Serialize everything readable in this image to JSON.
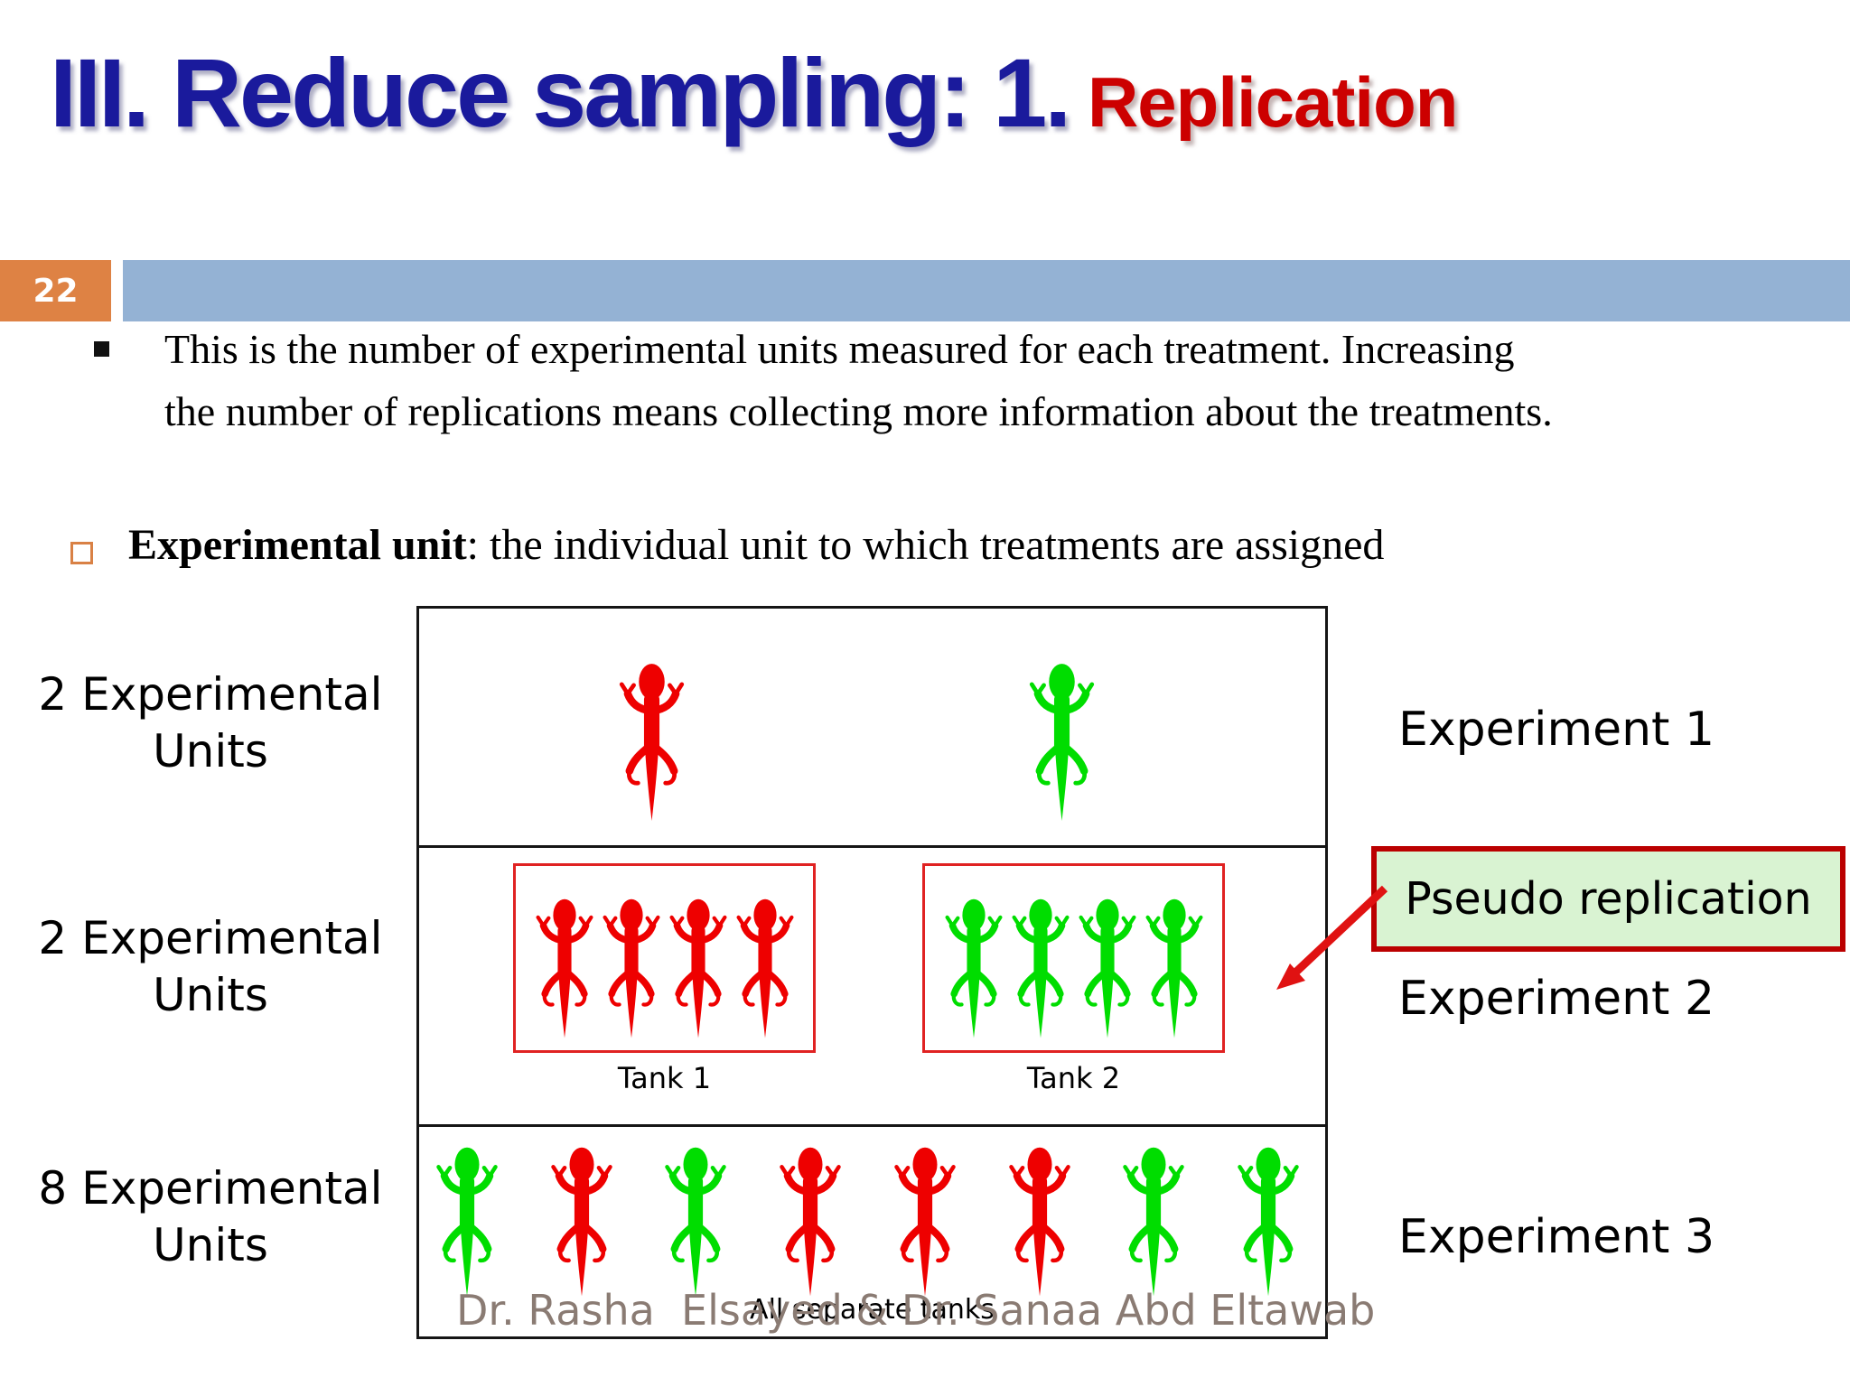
{
  "title": {
    "main": "III. Reduce sampling: 1.",
    "accent": " Replication"
  },
  "page_number": "22",
  "bullets": {
    "main": "This is the number of experimental units measured for each treatment. Increasing\nthe number of replications means collecting more information about the treatments.",
    "term": "Experimental unit",
    "definition": ": the individual unit to which treatments are assigned"
  },
  "diagram": {
    "rows": [
      {
        "label": "2 Experimental Units",
        "experiment": "Experiment 1",
        "lizards": [
          "red",
          "green"
        ]
      },
      {
        "label": "2 Experimental Units",
        "experiment": "Experiment 2",
        "tanks": [
          {
            "label": "Tank 1",
            "lizards": [
              "red",
              "red",
              "red",
              "red"
            ]
          },
          {
            "label": "Tank 2",
            "lizards": [
              "green",
              "green",
              "green",
              "green"
            ]
          }
        ]
      },
      {
        "label": "8 Experimental Units",
        "experiment": "Experiment 3",
        "lizards": [
          "green",
          "red",
          "green",
          "red",
          "red",
          "red",
          "green",
          "green"
        ],
        "caption": "All separate tanks"
      }
    ],
    "callout": {
      "text": "Pseudo replication"
    }
  },
  "footer": "Dr. Rasha  Elsayed & Dr. Sanaa Abd Eltawab",
  "colors": {
    "red": "#ee0000",
    "green": "#00dd00",
    "title_navy": "#1a1a9c",
    "title_red": "#cc0000",
    "badge_orange": "#de8244",
    "bar_blue": "#94b2d4",
    "tank_border_red": "#e02222",
    "callout_fill": "#d9f3d2",
    "callout_border": "#bb0000",
    "arrow_red": "#e01212",
    "footer_gray": "#8a7b73"
  }
}
